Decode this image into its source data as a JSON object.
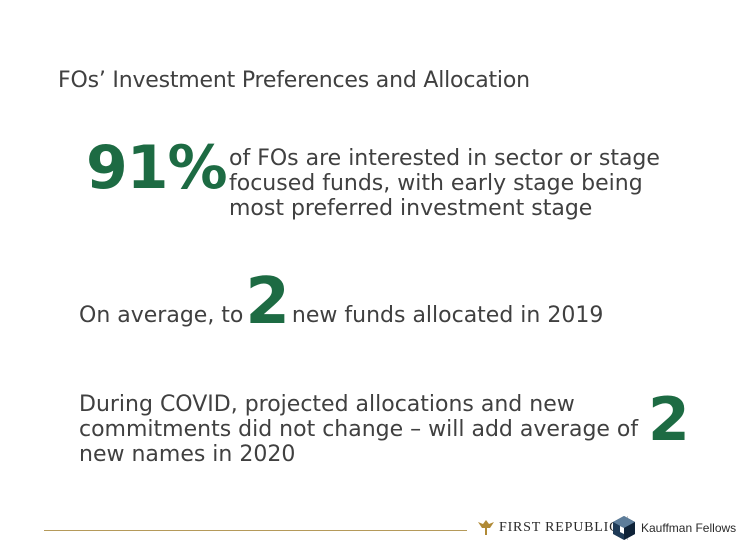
{
  "slide": {
    "title": "FOs’ Investment Preferences and Allocation",
    "stat1": {
      "value": "91%",
      "text": "of FOs are interested in sector or stage focused funds, with early stage being most preferred investment stage"
    },
    "stat2": {
      "prefix": "On average, to",
      "value": "2",
      "suffix": "new funds allocated in 2019"
    },
    "stat3": {
      "text": "During COVID, projected allocations and new commitments did not change – will add average of new names in 2020",
      "value": "2"
    }
  },
  "footer": {
    "logo_first_republic": "FIRST REPUBLIC",
    "logo_kauffman": "Kauffman Fellows"
  },
  "colors": {
    "accent_green": "#1d6b43",
    "text_gray": "#404040",
    "rule_gold": "#b59a5a"
  }
}
